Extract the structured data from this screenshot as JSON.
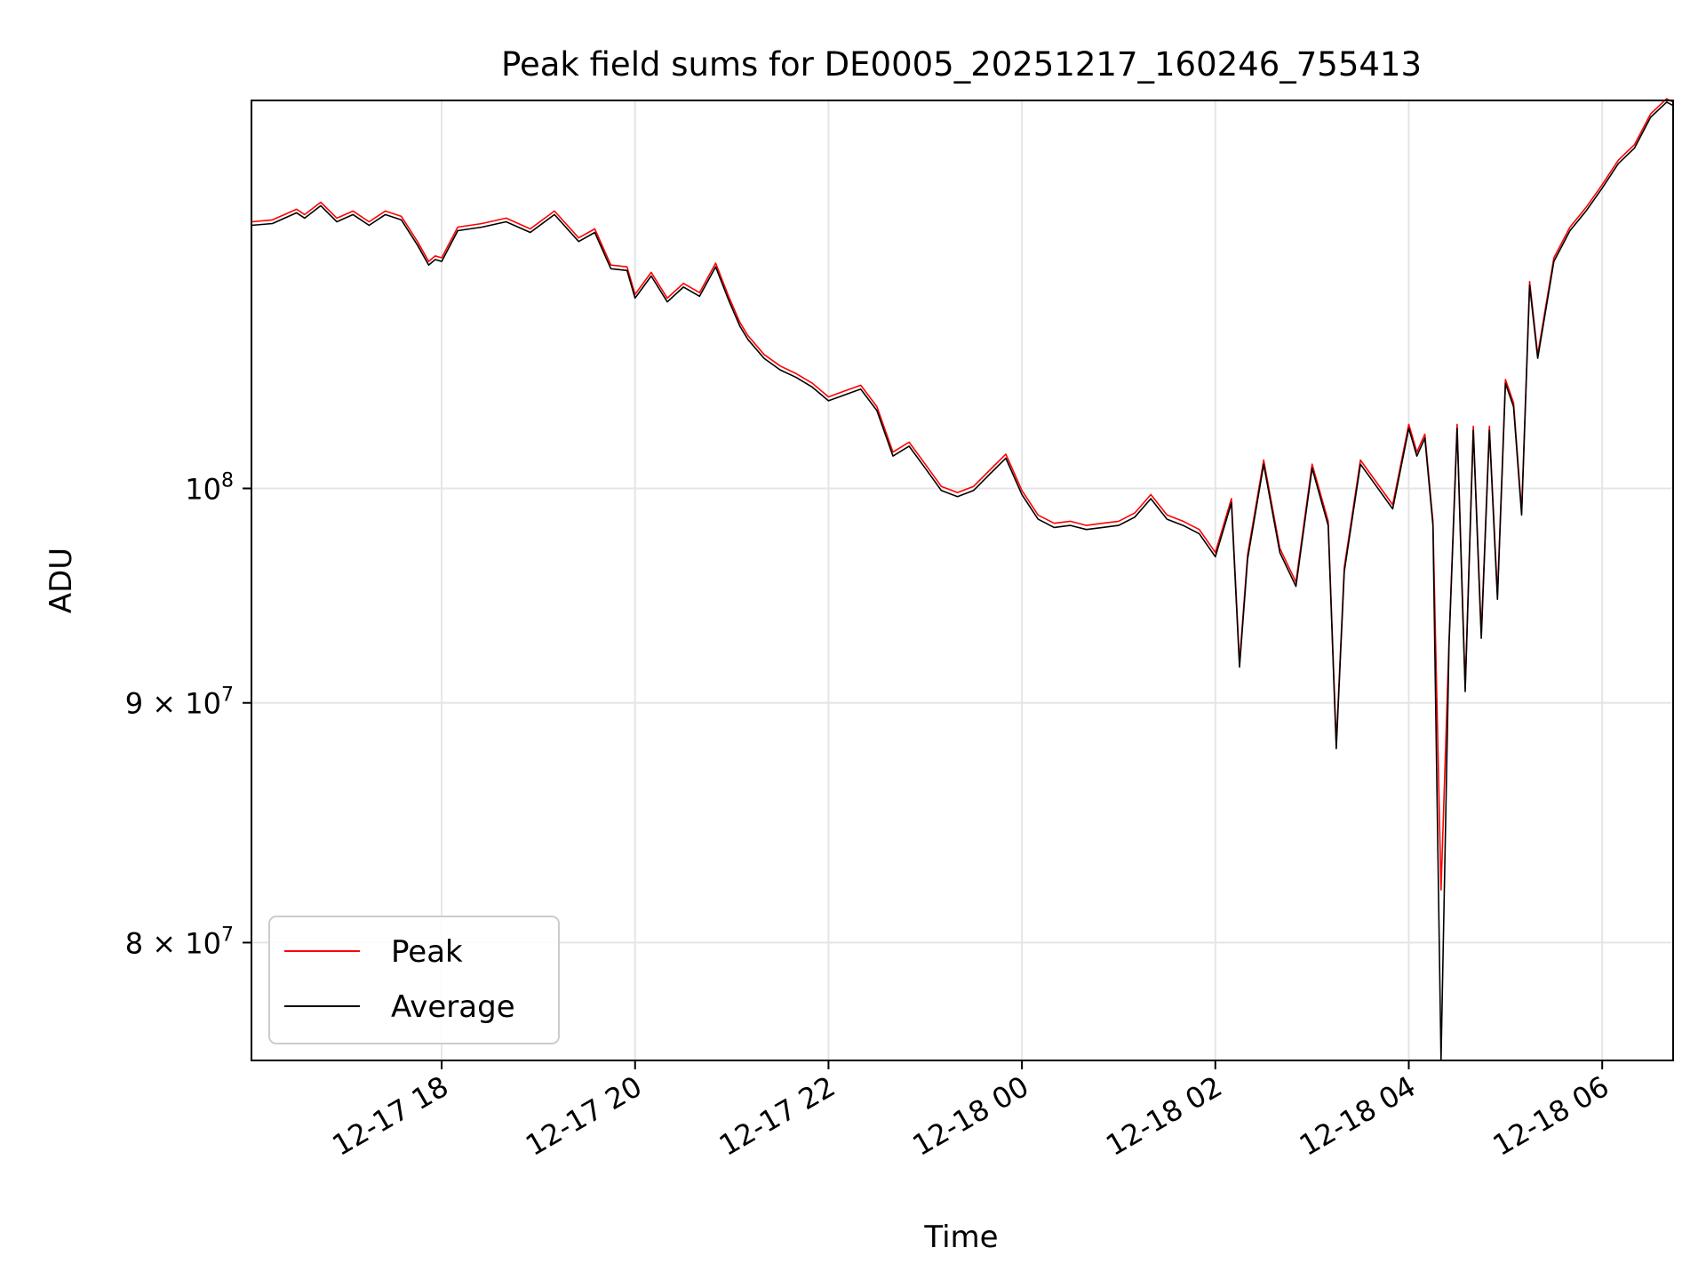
{
  "chart_data": {
    "type": "line",
    "title": "Peak field sums for DE0005_20251217_160246_755413",
    "xlabel": "Time",
    "ylabel": "ADU",
    "y_scale": "log",
    "grid": true,
    "legend_position": "lower-left",
    "xlim": [
      "2025-12-17 16:02",
      "2025-12-18 06:44"
    ],
    "ylim": [
      75500000,
      121000000
    ],
    "x_ticks": [
      "2025-12-17 18:00",
      "2025-12-17 20:00",
      "2025-12-17 22:00",
      "2025-12-18 00:00",
      "2025-12-18 02:00",
      "2025-12-18 04:00",
      "2025-12-18 06:00"
    ],
    "x_tick_labels": [
      "12-17 18",
      "12-17 20",
      "12-17 22",
      "12-18 00",
      "12-18 02",
      "12-18 04",
      "12-18 06"
    ],
    "y_ticks": [
      {
        "value": 100000000,
        "mantissa": "",
        "exponent": "8"
      },
      {
        "value": 90000000,
        "mantissa": "9",
        "exponent": "7"
      },
      {
        "value": 80000000,
        "mantissa": "8",
        "exponent": "7"
      }
    ],
    "x": [
      "2025-12-17 16:02",
      "2025-12-17 16:15",
      "2025-12-17 16:30",
      "2025-12-17 16:35",
      "2025-12-17 16:45",
      "2025-12-17 16:55",
      "2025-12-17 17:05",
      "2025-12-17 17:15",
      "2025-12-17 17:25",
      "2025-12-17 17:35",
      "2025-12-17 17:45",
      "2025-12-17 17:52",
      "2025-12-17 17:56",
      "2025-12-17 18:00",
      "2025-12-17 18:10",
      "2025-12-17 18:25",
      "2025-12-17 18:40",
      "2025-12-17 18:55",
      "2025-12-17 19:10",
      "2025-12-17 19:25",
      "2025-12-17 19:35",
      "2025-12-17 19:45",
      "2025-12-17 19:55",
      "2025-12-17 20:00",
      "2025-12-17 20:10",
      "2025-12-17 20:20",
      "2025-12-17 20:30",
      "2025-12-17 20:40",
      "2025-12-17 20:50",
      "2025-12-17 20:58",
      "2025-12-17 21:05",
      "2025-12-17 21:10",
      "2025-12-17 21:20",
      "2025-12-17 21:30",
      "2025-12-17 21:40",
      "2025-12-17 21:50",
      "2025-12-17 22:00",
      "2025-12-17 22:10",
      "2025-12-17 22:20",
      "2025-12-17 22:30",
      "2025-12-17 22:40",
      "2025-12-17 22:50",
      "2025-12-17 23:00",
      "2025-12-17 23:10",
      "2025-12-17 23:20",
      "2025-12-17 23:30",
      "2025-12-17 23:40",
      "2025-12-17 23:50",
      "2025-12-18 00:00",
      "2025-12-18 00:10",
      "2025-12-18 00:20",
      "2025-12-18 00:30",
      "2025-12-18 00:40",
      "2025-12-18 00:50",
      "2025-12-18 01:00",
      "2025-12-18 01:10",
      "2025-12-18 01:20",
      "2025-12-18 01:30",
      "2025-12-18 01:40",
      "2025-12-18 01:50",
      "2025-12-18 02:00",
      "2025-12-18 02:10",
      "2025-12-18 02:15",
      "2025-12-18 02:20",
      "2025-12-18 02:30",
      "2025-12-18 02:40",
      "2025-12-18 02:50",
      "2025-12-18 03:00",
      "2025-12-18 03:10",
      "2025-12-18 03:15",
      "2025-12-18 03:20",
      "2025-12-18 03:30",
      "2025-12-18 03:40",
      "2025-12-18 03:50",
      "2025-12-18 04:00",
      "2025-12-18 04:05",
      "2025-12-18 04:10",
      "2025-12-18 04:15",
      "2025-12-18 04:20",
      "2025-12-18 04:25",
      "2025-12-18 04:30",
      "2025-12-18 04:35",
      "2025-12-18 04:40",
      "2025-12-18 04:45",
      "2025-12-18 04:50",
      "2025-12-18 04:55",
      "2025-12-18 05:00",
      "2025-12-18 05:05",
      "2025-12-18 05:10",
      "2025-12-18 05:15",
      "2025-12-18 05:20",
      "2025-12-18 05:30",
      "2025-12-18 05:40",
      "2025-12-18 05:50",
      "2025-12-18 06:00",
      "2025-12-18 06:10",
      "2025-12-18 06:20",
      "2025-12-18 06:30",
      "2025-12-18 06:40",
      "2025-12-18 06:44"
    ],
    "series": [
      {
        "name": "Peak",
        "color": "#ff0000",
        "values": [
          114000000,
          114100000,
          114700000,
          114400000,
          115100000,
          114200000,
          114600000,
          114000000,
          114600000,
          114300000,
          112900000,
          111800000,
          112100000,
          112000000,
          113700000,
          113900000,
          114200000,
          113600000,
          114600000,
          113100000,
          113600000,
          111600000,
          111500000,
          110000000,
          111200000,
          109800000,
          110600000,
          110100000,
          111700000,
          109900000,
          108500000,
          107800000,
          106800000,
          106200000,
          105800000,
          105300000,
          104600000,
          104900000,
          105200000,
          104100000,
          101800000,
          102300000,
          101200000,
          100100000,
          99800000,
          100100000,
          100900000,
          101700000,
          99900000,
          98700000,
          98300000,
          98400000,
          98200000,
          98300000,
          98400000,
          98800000,
          99700000,
          98700000,
          98400000,
          98000000,
          96900000,
          99500000,
          91800000,
          96800000,
          101400000,
          97100000,
          95500000,
          101200000,
          98400000,
          88200000,
          96200000,
          101400000,
          100300000,
          99200000,
          103200000,
          101800000,
          102700000,
          98400000,
          82100000,
          92800000,
          103200000,
          90700000,
          103100000,
          93100000,
          103100000,
          94900000,
          105500000,
          104300000,
          98900000,
          110700000,
          106800000,
          112000000,
          113700000,
          114800000,
          116100000,
          117500000,
          118400000,
          120200000,
          121100000,
          120900000
        ]
      },
      {
        "name": "Average",
        "color": "#000000",
        "values": [
          113800000,
          113900000,
          114500000,
          114200000,
          114900000,
          114000000,
          114400000,
          113800000,
          114400000,
          114100000,
          112700000,
          111600000,
          111900000,
          111800000,
          113500000,
          113700000,
          114000000,
          113400000,
          114400000,
          112900000,
          113400000,
          111400000,
          111300000,
          109800000,
          111000000,
          109600000,
          110400000,
          109900000,
          111500000,
          109700000,
          108300000,
          107600000,
          106600000,
          106000000,
          105600000,
          105100000,
          104400000,
          104700000,
          105000000,
          103900000,
          101600000,
          102100000,
          101000000,
          99900000,
          99600000,
          99900000,
          100700000,
          101500000,
          99700000,
          98500000,
          98100000,
          98200000,
          98000000,
          98100000,
          98200000,
          98600000,
          99500000,
          98500000,
          98200000,
          97800000,
          96700000,
          99300000,
          91600000,
          96600000,
          101200000,
          96900000,
          95300000,
          101000000,
          98200000,
          88000000,
          96000000,
          101200000,
          100100000,
          99000000,
          103000000,
          101600000,
          102500000,
          98200000,
          75500000,
          92600000,
          103000000,
          90500000,
          102900000,
          92900000,
          102900000,
          94700000,
          105300000,
          104100000,
          98700000,
          110500000,
          106600000,
          111800000,
          113500000,
          114600000,
          115900000,
          117300000,
          118200000,
          120000000,
          120900000,
          120700000
        ]
      }
    ]
  }
}
